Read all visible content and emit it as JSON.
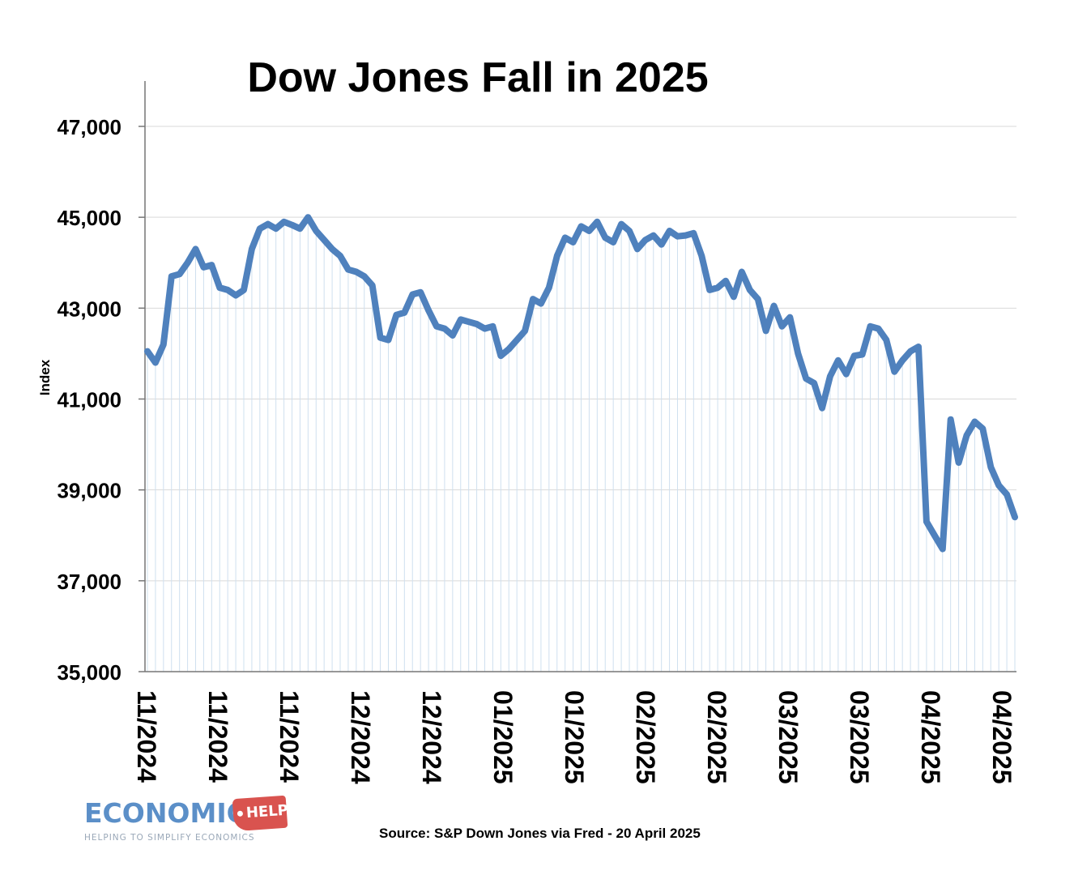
{
  "chart_data": {
    "type": "line",
    "title": "Dow Jones Fall in 2025",
    "ylabel": "Index",
    "xlabel": "",
    "ylim": [
      35000,
      47000
    ],
    "yticks": [
      "35,000",
      "37,000",
      "39,000",
      "41,000",
      "43,000",
      "45,000",
      "47,000"
    ],
    "xticks": [
      "11/2024",
      "11/2024",
      "11/2024",
      "12/2024",
      "12/2024",
      "01/2025",
      "01/2025",
      "02/2025",
      "02/2025",
      "03/2025",
      "03/2025",
      "04/2025",
      "04/2025"
    ],
    "grid": "vertical lines at each observation; horizontal lines at y ticks",
    "legend": "none",
    "color": "#4f81bd",
    "series": [
      {
        "values": [
          42050,
          41800,
          42200,
          43700,
          43750,
          44000,
          44300,
          43900,
          43950,
          43450,
          43400,
          43280,
          43400,
          44300,
          44750,
          44850,
          44750,
          44900,
          44830,
          44750,
          45000,
          44700,
          44500,
          44300,
          44150,
          43850,
          43800,
          43700,
          43500,
          42350,
          42300,
          42850,
          42900,
          43300,
          43350,
          42950,
          42600,
          42550,
          42400,
          42750,
          42700,
          42650,
          42550,
          42600,
          41950,
          42100,
          42300,
          42500,
          43200,
          43100,
          43450,
          44150,
          44550,
          44450,
          44800,
          44700,
          44900,
          44550,
          44450,
          44850,
          44700,
          44300,
          44500,
          44600,
          44400,
          44700,
          44580,
          44600,
          44650,
          44150,
          43400,
          43450,
          43600,
          43250,
          43800,
          43400,
          43200,
          42500,
          43050,
          42600,
          42800,
          42000,
          41450,
          41350,
          40800,
          41500,
          41850,
          41550,
          41950,
          41980,
          42600,
          42550,
          42300,
          41600,
          41850,
          42050,
          42150,
          38300,
          38000,
          37700,
          40550,
          39600,
          40200,
          40500,
          40350,
          39500,
          39100,
          38900,
          38400
        ]
      }
    ]
  },
  "source": "Source: S&P Down Jones via Fred - 20 April 2025",
  "logo": {
    "word": "ECONOMICS",
    "tag": "HELP",
    "tagline": "HELPING TO SIMPLIFY ECONOMICS",
    "color": "#5b8fc8",
    "tag_color": "#d9534f"
  }
}
